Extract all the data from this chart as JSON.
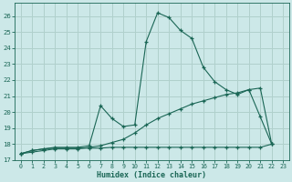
{
  "xlabel": "Humidex (Indice chaleur)",
  "bg_color": "#cce8e8",
  "grid_color": "#b0d0cc",
  "line_color": "#1a6655",
  "xlim": [
    -0.5,
    23.5
  ],
  "ylim": [
    17.0,
    26.8
  ],
  "xticks": [
    0,
    1,
    2,
    3,
    4,
    5,
    6,
    7,
    8,
    9,
    10,
    11,
    12,
    13,
    14,
    15,
    16,
    17,
    18,
    19,
    20,
    21,
    22,
    23
  ],
  "yticks": [
    17,
    18,
    19,
    20,
    21,
    22,
    23,
    24,
    25,
    26
  ],
  "line1_x": [
    0,
    1,
    2,
    3,
    4,
    5,
    6,
    7,
    8,
    9,
    10,
    11,
    12,
    13,
    14,
    15,
    16,
    17,
    18,
    19,
    20,
    21,
    22
  ],
  "line1_y": [
    17.4,
    17.6,
    17.7,
    17.8,
    17.8,
    17.8,
    17.9,
    20.4,
    19.6,
    19.1,
    19.2,
    24.4,
    26.2,
    25.9,
    25.1,
    24.6,
    22.8,
    21.9,
    21.4,
    21.1,
    21.4,
    19.7,
    18.0
  ],
  "line2_x": [
    0,
    1,
    2,
    3,
    4,
    5,
    6,
    7,
    8,
    9,
    10,
    11,
    12,
    13,
    14,
    15,
    16,
    17,
    18,
    19,
    20,
    21,
    22
  ],
  "line2_y": [
    17.4,
    17.5,
    17.6,
    17.7,
    17.7,
    17.7,
    17.8,
    17.9,
    18.1,
    18.3,
    18.7,
    19.2,
    19.6,
    19.9,
    20.2,
    20.5,
    20.7,
    20.9,
    21.1,
    21.2,
    21.4,
    21.5,
    18.0
  ],
  "line3_x": [
    0,
    1,
    2,
    3,
    4,
    5,
    6,
    7,
    8,
    9,
    10,
    11,
    12,
    13,
    14,
    15,
    16,
    17,
    18,
    19,
    20,
    21,
    22
  ],
  "line3_y": [
    17.4,
    17.6,
    17.7,
    17.75,
    17.75,
    17.75,
    17.75,
    17.75,
    17.8,
    17.8,
    17.8,
    17.8,
    17.8,
    17.8,
    17.8,
    17.8,
    17.8,
    17.8,
    17.8,
    17.8,
    17.8,
    17.8,
    18.0
  ]
}
